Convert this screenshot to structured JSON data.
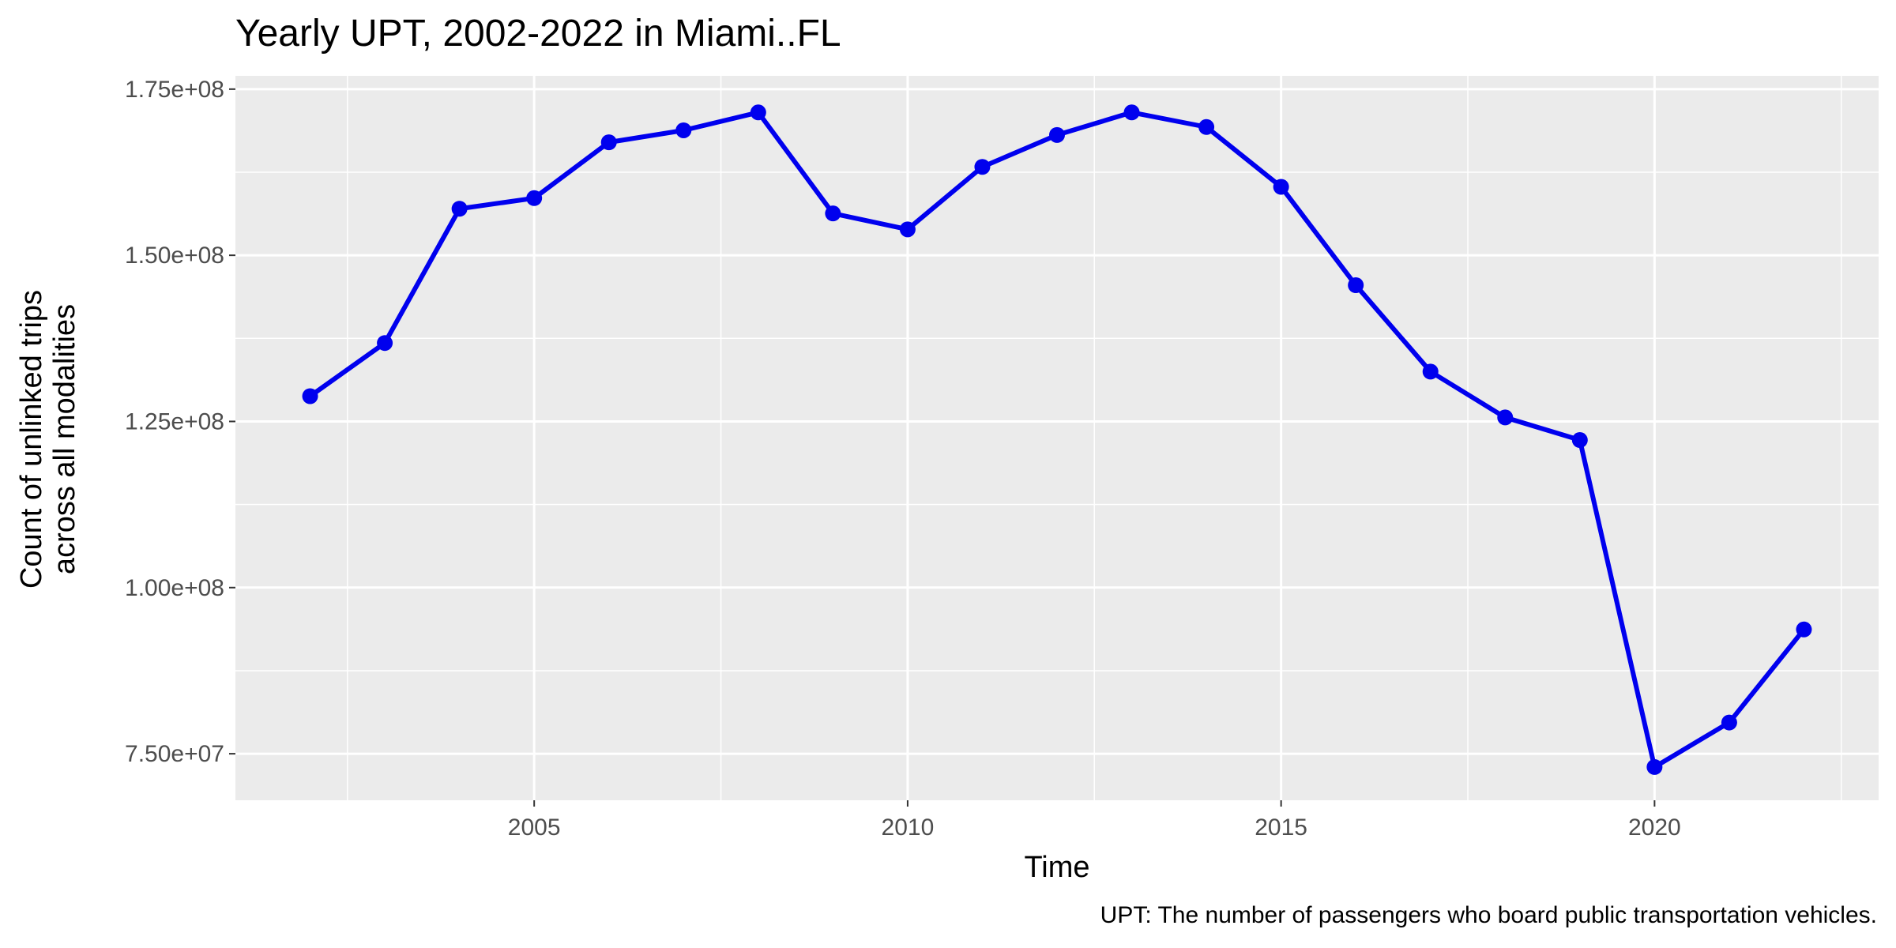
{
  "chart_data": {
    "type": "line",
    "title": "Yearly UPT, 2002-2022 in Miami..FL",
    "xlabel": "Time",
    "ylabel_lines": [
      "Count of unlinked trips",
      "across all modalities"
    ],
    "caption": "UPT: The number of passengers who board public transportation vehicles.",
    "x": [
      2002,
      2003,
      2004,
      2005,
      2006,
      2007,
      2008,
      2009,
      2010,
      2011,
      2012,
      2013,
      2014,
      2015,
      2016,
      2017,
      2018,
      2019,
      2020,
      2021,
      2022
    ],
    "series": [
      {
        "values": [
          128800000,
          136800000,
          157000000,
          158600000,
          167000000,
          168800000,
          171500000,
          156300000,
          153900000,
          163300000,
          168100000,
          171500000,
          169300000,
          160300000,
          145500000,
          132500000,
          125600000,
          122200000,
          73000000,
          79700000,
          93700000
        ]
      }
    ],
    "xlim": [
      2001,
      2023
    ],
    "ylim": [
      68000000,
      177000000
    ],
    "x_ticks": [
      2005,
      2010,
      2015,
      2020
    ],
    "x_tick_labels": [
      "2005",
      "2010",
      "2015",
      "2020"
    ],
    "y_ticks": [
      75000000,
      100000000,
      125000000,
      150000000,
      175000000
    ],
    "y_tick_labels": [
      "7.50e+07",
      "1.00e+08",
      "1.25e+08",
      "1.50e+08",
      "1.75e+08"
    ],
    "grid": true,
    "legend": "none",
    "colors": {
      "line": "#0000ee",
      "panel": "#ebebeb",
      "grid": "#ffffff"
    }
  }
}
